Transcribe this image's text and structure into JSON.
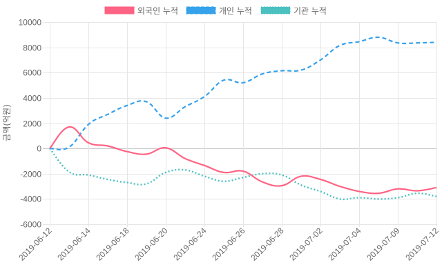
{
  "chart_data": {
    "type": "line",
    "title": "",
    "xlabel": "",
    "ylabel": "금액(억원)",
    "ylim": [
      -6000,
      10000
    ],
    "y_ticks": [
      10000,
      8000,
      6000,
      4000,
      2000,
      0,
      -2000,
      -4000,
      -6000
    ],
    "grid": true,
    "legend_position": "top",
    "point_count": 21,
    "x_tick_labels": [
      {
        "index": 0,
        "label": "2019-06-12"
      },
      {
        "index": 2,
        "label": "2019-06-14"
      },
      {
        "index": 4,
        "label": "2019-06-18"
      },
      {
        "index": 6,
        "label": "2019-06-20"
      },
      {
        "index": 8,
        "label": "2019-06-24"
      },
      {
        "index": 10,
        "label": "2019-06-26"
      },
      {
        "index": 12,
        "label": "2019-06-28"
      },
      {
        "index": 14,
        "label": "2019-07-02"
      },
      {
        "index": 16,
        "label": "2019-07-04"
      },
      {
        "index": 18,
        "label": "2019-07-09"
      },
      {
        "index": 20,
        "label": "2019-07-12"
      }
    ],
    "series": [
      {
        "name": "외국인 누적",
        "color": "#ff6384",
        "style": "solid",
        "values": [
          0,
          1700,
          450,
          200,
          -250,
          -450,
          50,
          -800,
          -1350,
          -1900,
          -1800,
          -2650,
          -2950,
          -2200,
          -2450,
          -3000,
          -3400,
          -3550,
          -3200,
          -3350,
          -3100
        ]
      },
      {
        "name": "개인 누적",
        "color": "#36a2eb",
        "style": "dashed",
        "values": [
          0,
          100,
          1900,
          2700,
          3400,
          3700,
          2400,
          3300,
          4100,
          5400,
          5200,
          5900,
          6150,
          6200,
          7000,
          8150,
          8450,
          8800,
          8350,
          8350,
          8400
        ]
      },
      {
        "name": "기관 누적",
        "color": "#4bc0c0",
        "style": "dotted",
        "values": [
          0,
          -1850,
          -2100,
          -2450,
          -2700,
          -2800,
          -1900,
          -1700,
          -2200,
          -2600,
          -2300,
          -2000,
          -2100,
          -2900,
          -3400,
          -4000,
          -3900,
          -4000,
          -3900,
          -3550,
          -3800
        ]
      }
    ]
  }
}
